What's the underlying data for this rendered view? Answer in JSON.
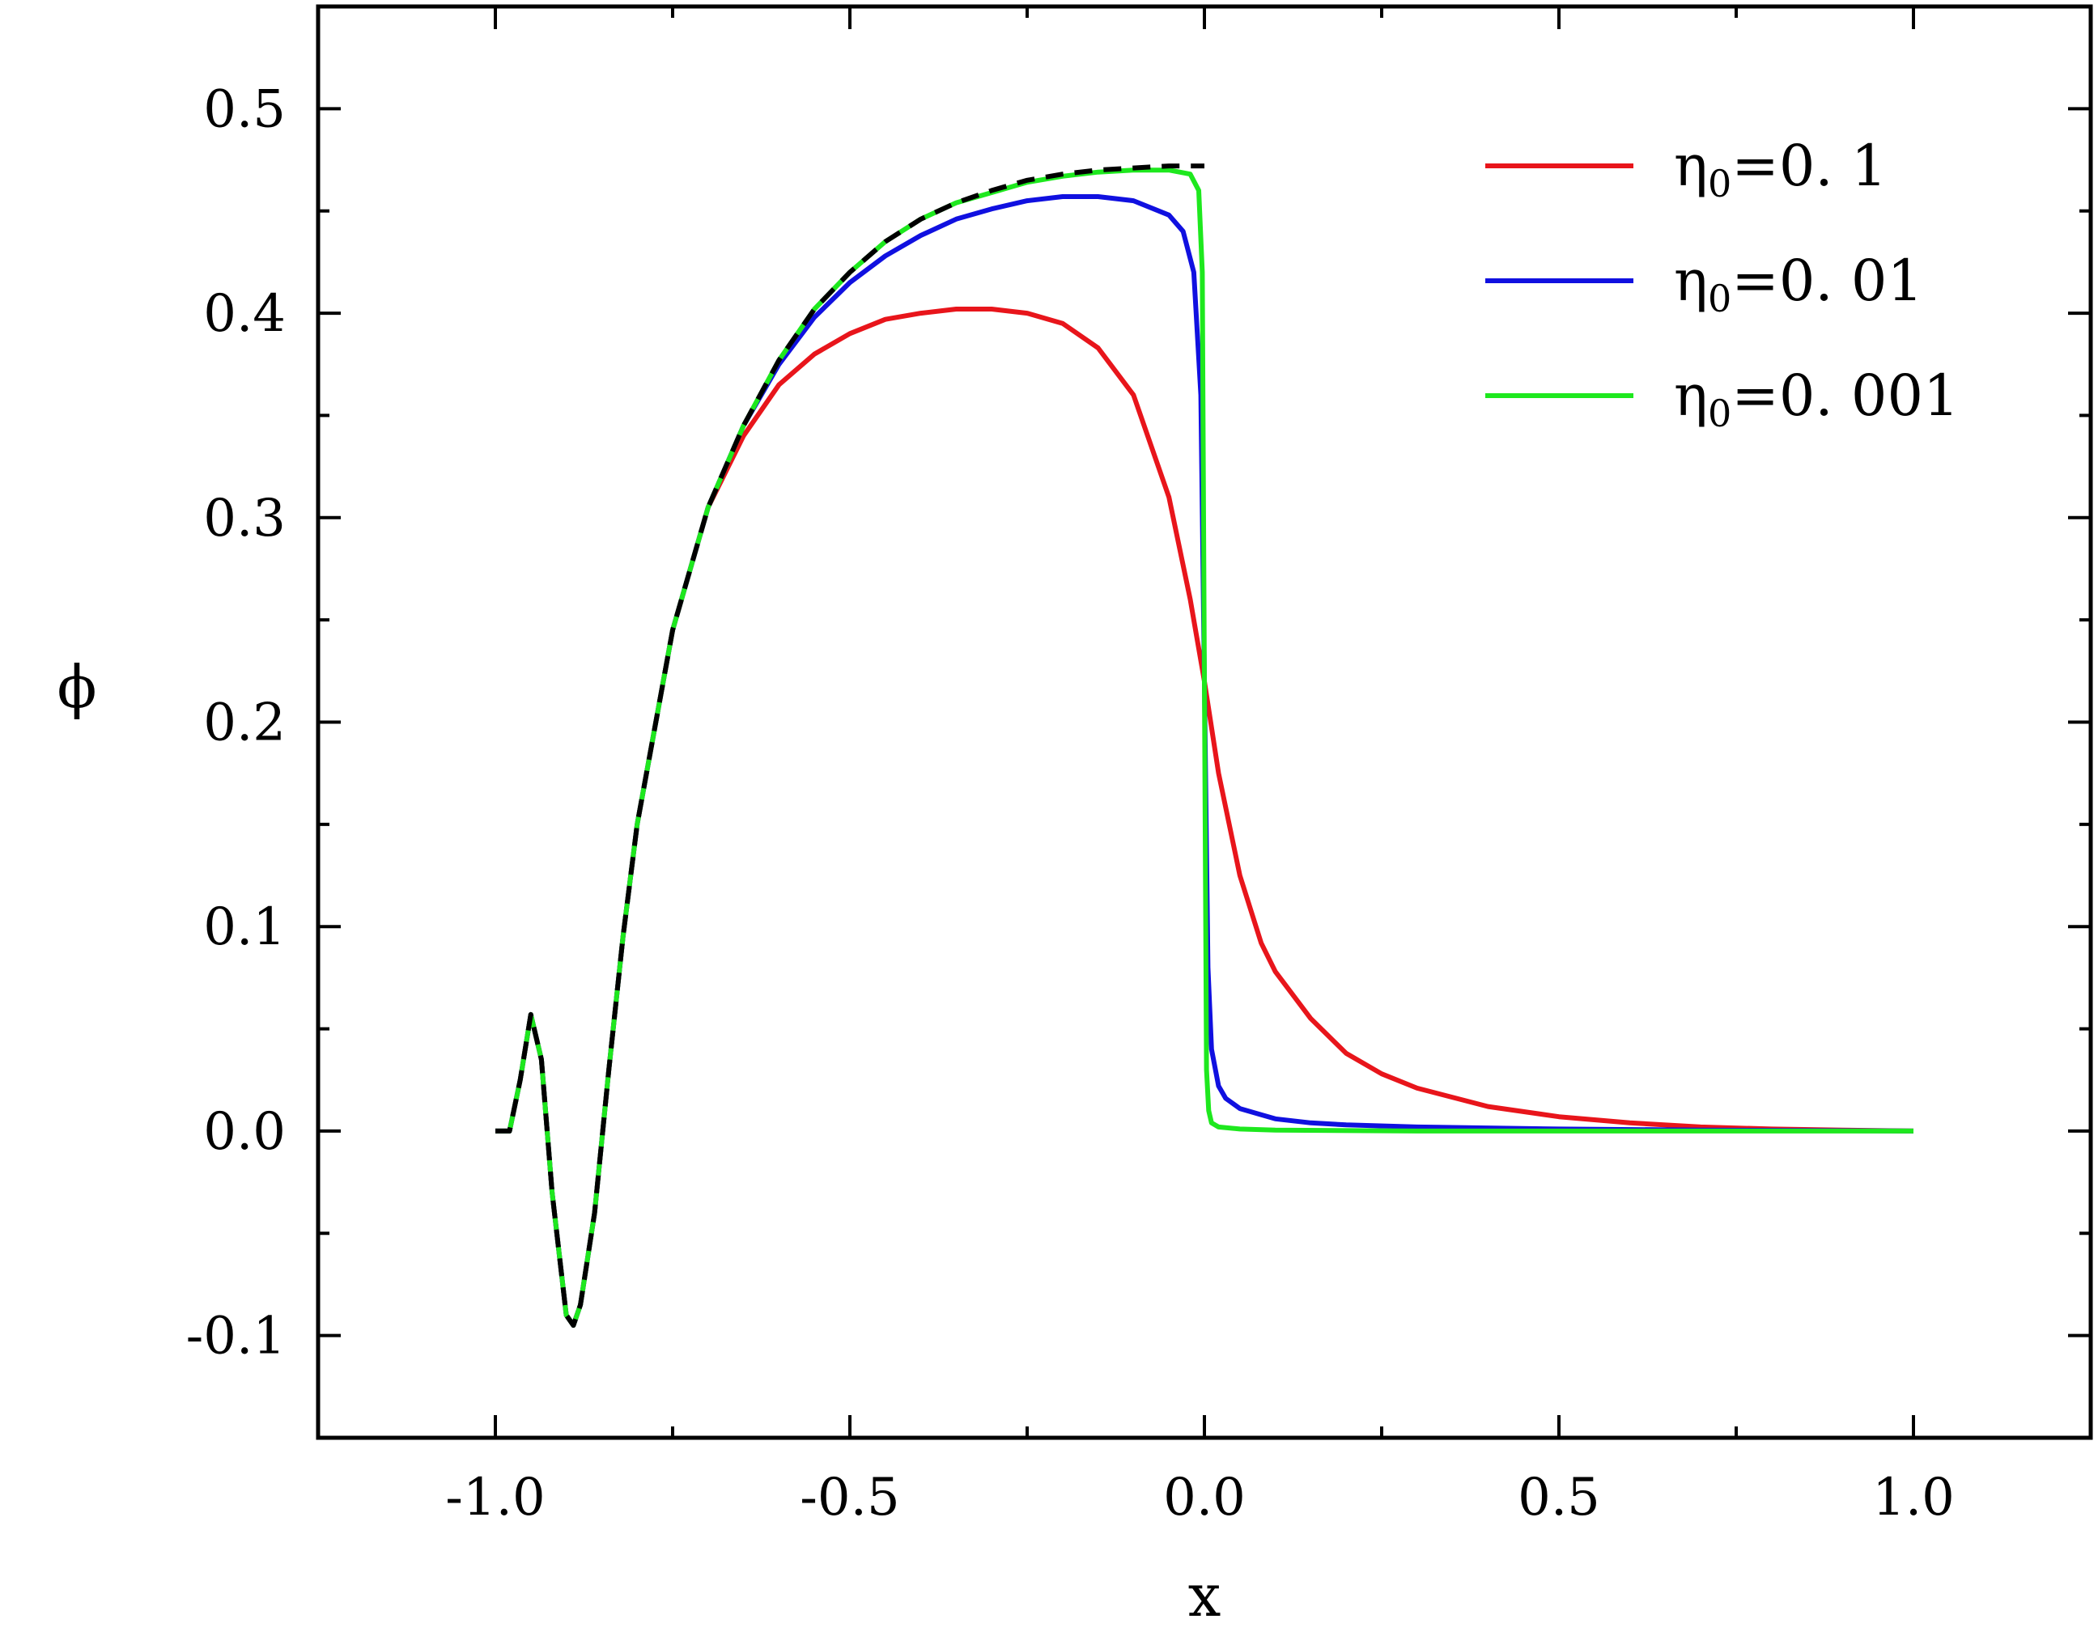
{
  "chart_data": {
    "type": "line",
    "xlabel": "x",
    "ylabel": "ϕ",
    "xlim": [
      -1.25,
      1.25
    ],
    "ylim": [
      -0.15,
      0.55
    ],
    "xticks": [
      -1.0,
      -0.5,
      0.0,
      0.5,
      1.0
    ],
    "xtick_labels": [
      "-1.0",
      "-0.5",
      "0.0",
      "0.5",
      "1.0"
    ],
    "yticks": [
      -0.1,
      0.0,
      0.1,
      0.2,
      0.3,
      0.4,
      0.5
    ],
    "ytick_labels": [
      "-0.1",
      "0.0",
      "0.1",
      "0.2",
      "0.3",
      "0.4",
      "0.5"
    ],
    "grid": false,
    "legend_position": "top-right",
    "series": [
      {
        "name": "η₀=0.1",
        "label_base": "η",
        "label_sub": "0",
        "label_rest": "=0. 1",
        "color": "#e8151b",
        "style": "solid",
        "x": [
          -1.0,
          -0.98,
          -0.965,
          -0.95,
          -0.935,
          -0.92,
          -0.9,
          -0.89,
          -0.88,
          -0.86,
          -0.84,
          -0.82,
          -0.8,
          -0.75,
          -0.7,
          -0.65,
          -0.6,
          -0.55,
          -0.5,
          -0.45,
          -0.4,
          -0.35,
          -0.3,
          -0.25,
          -0.2,
          -0.15,
          -0.1,
          -0.05,
          -0.02,
          0.0,
          0.02,
          0.05,
          0.08,
          0.1,
          0.15,
          0.2,
          0.25,
          0.3,
          0.4,
          0.5,
          0.6,
          0.7,
          0.8,
          0.9,
          1.0
        ],
        "y": [
          0.0,
          0.0,
          0.025,
          0.057,
          0.035,
          -0.03,
          -0.09,
          -0.095,
          -0.085,
          -0.04,
          0.03,
          0.095,
          0.15,
          0.245,
          0.305,
          0.34,
          0.365,
          0.38,
          0.39,
          0.397,
          0.4,
          0.402,
          0.402,
          0.4,
          0.395,
          0.383,
          0.36,
          0.31,
          0.26,
          0.22,
          0.175,
          0.125,
          0.092,
          0.078,
          0.055,
          0.038,
          0.028,
          0.021,
          0.012,
          0.007,
          0.004,
          0.002,
          0.001,
          0.0005,
          0.0
        ]
      },
      {
        "name": "η₀=0.01",
        "label_base": "η",
        "label_sub": "0",
        "label_rest": "=0. 01",
        "color": "#1010e0",
        "style": "solid",
        "x": [
          -1.0,
          -0.98,
          -0.965,
          -0.95,
          -0.935,
          -0.92,
          -0.9,
          -0.89,
          -0.88,
          -0.86,
          -0.84,
          -0.82,
          -0.8,
          -0.75,
          -0.7,
          -0.65,
          -0.6,
          -0.55,
          -0.5,
          -0.45,
          -0.4,
          -0.35,
          -0.3,
          -0.25,
          -0.2,
          -0.15,
          -0.1,
          -0.05,
          -0.03,
          -0.015,
          -0.005,
          0.0,
          0.005,
          0.01,
          0.02,
          0.03,
          0.05,
          0.08,
          0.1,
          0.15,
          0.2,
          0.3,
          0.5,
          0.7,
          1.0
        ],
        "y": [
          0.0,
          0.0,
          0.025,
          0.057,
          0.035,
          -0.03,
          -0.09,
          -0.095,
          -0.085,
          -0.04,
          0.03,
          0.095,
          0.15,
          0.245,
          0.305,
          0.345,
          0.375,
          0.398,
          0.415,
          0.428,
          0.438,
          0.446,
          0.451,
          0.455,
          0.457,
          0.457,
          0.455,
          0.448,
          0.44,
          0.42,
          0.36,
          0.22,
          0.08,
          0.04,
          0.022,
          0.016,
          0.011,
          0.008,
          0.006,
          0.004,
          0.003,
          0.002,
          0.001,
          0.0005,
          0.0
        ]
      },
      {
        "name": "η₀=0.001",
        "label_base": "η",
        "label_sub": "0",
        "label_rest": "=0. 001",
        "color": "#1ee81e",
        "style": "solid",
        "x": [
          -1.0,
          -0.98,
          -0.965,
          -0.95,
          -0.935,
          -0.92,
          -0.9,
          -0.89,
          -0.88,
          -0.86,
          -0.84,
          -0.82,
          -0.8,
          -0.75,
          -0.7,
          -0.65,
          -0.6,
          -0.55,
          -0.5,
          -0.45,
          -0.4,
          -0.35,
          -0.3,
          -0.25,
          -0.2,
          -0.15,
          -0.1,
          -0.05,
          -0.02,
          -0.008,
          -0.003,
          0.0,
          0.003,
          0.006,
          0.01,
          0.02,
          0.05,
          0.1,
          0.3,
          0.5,
          1.0
        ],
        "y": [
          0.0,
          0.0,
          0.025,
          0.057,
          0.035,
          -0.03,
          -0.09,
          -0.095,
          -0.085,
          -0.04,
          0.03,
          0.095,
          0.15,
          0.245,
          0.305,
          0.345,
          0.377,
          0.402,
          0.42,
          0.435,
          0.446,
          0.454,
          0.459,
          0.464,
          0.467,
          0.469,
          0.47,
          0.47,
          0.468,
          0.46,
          0.42,
          0.22,
          0.03,
          0.01,
          0.004,
          0.002,
          0.001,
          0.0005,
          0.0,
          0.0,
          0.0
        ]
      },
      {
        "name": "",
        "color": "#000000",
        "style": "dashed",
        "x": [
          -1.0,
          -0.98,
          -0.965,
          -0.95,
          -0.935,
          -0.92,
          -0.9,
          -0.89,
          -0.88,
          -0.86,
          -0.84,
          -0.82,
          -0.8,
          -0.75,
          -0.7,
          -0.65,
          -0.6,
          -0.55,
          -0.5,
          -0.45,
          -0.4,
          -0.35,
          -0.3,
          -0.25,
          -0.2,
          -0.15,
          -0.1,
          -0.05,
          0.0
        ],
        "y": [
          0.0,
          0.0,
          0.025,
          0.057,
          0.035,
          -0.03,
          -0.09,
          -0.095,
          -0.085,
          -0.04,
          0.03,
          0.095,
          0.15,
          0.245,
          0.305,
          0.345,
          0.377,
          0.402,
          0.42,
          0.435,
          0.446,
          0.454,
          0.46,
          0.465,
          0.468,
          0.47,
          0.471,
          0.472,
          0.472
        ]
      }
    ]
  }
}
